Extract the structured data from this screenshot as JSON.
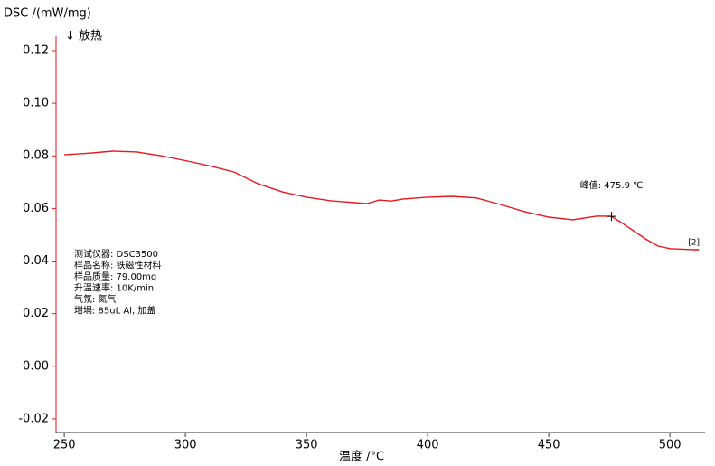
{
  "chart_data": {
    "type": "line",
    "y_label": "DSC /(mW/mg)",
    "x_label": "温度 /°C",
    "direction_note": "↓ 放热",
    "x": [
      250,
      260,
      270,
      280,
      290,
      300,
      310,
      320,
      330,
      340,
      350,
      360,
      370,
      375,
      380,
      385,
      390,
      400,
      410,
      420,
      430,
      440,
      450,
      460,
      470,
      475.9,
      480,
      490,
      495,
      500,
      510,
      512
    ],
    "series": [
      {
        "name": "[2]",
        "color": "#e8161b",
        "values": [
          0.0804,
          0.081,
          0.0818,
          0.0815,
          0.08,
          0.0782,
          0.0762,
          0.0739,
          0.0694,
          0.0663,
          0.0643,
          0.0629,
          0.0622,
          0.0618,
          0.0632,
          0.0628,
          0.0636,
          0.0643,
          0.0646,
          0.064,
          0.0615,
          0.0588,
          0.0567,
          0.0557,
          0.0571,
          0.057,
          0.0546,
          0.0484,
          0.0457,
          0.0447,
          0.0443,
          0.0443
        ]
      }
    ],
    "peak": {
      "label": "峰值: 475.9 ℃",
      "x": 475.9,
      "y": 0.057
    },
    "info": [
      "测试仪器: DSC3500",
      "样品名称: 铁磁性材料",
      "样品质量: 79.00mg",
      "升温速率: 10K/min",
      "气氛: 氮气",
      "坩埚: 85uL Al, 加盖"
    ],
    "xlim": [
      246.6,
      514.5
    ],
    "ylim": [
      -0.0252,
      0.1255
    ],
    "xticks": [
      250,
      300,
      350,
      400,
      450,
      500
    ],
    "yticks": [
      -0.02,
      {
        "value": 0,
        "label": "0.00"
      },
      0.02,
      0.04,
      0.06,
      0.08,
      {
        "value": 0.1,
        "label": "0.10"
      },
      0.12
    ]
  }
}
